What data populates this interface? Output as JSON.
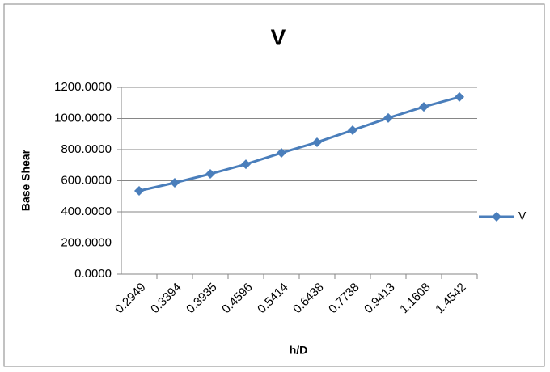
{
  "chart_data": {
    "type": "line",
    "title": "V",
    "ylabel": "Base Shear",
    "xlabel": "h/D",
    "categories": [
      "0.2949",
      "0.3394",
      "0.3935",
      "0.4596",
      "0.5414",
      "0.6438",
      "0.7738",
      "0.9413",
      "1.1608",
      "1.4542"
    ],
    "series": [
      {
        "name": "V",
        "color": "#4a7ebb",
        "values": [
          535,
          587,
          644,
          706,
          779,
          847,
          925,
          1003,
          1075,
          1138
        ]
      }
    ],
    "ylim": [
      0,
      1200
    ],
    "yticks": [
      {
        "value": 0,
        "label": "0.0000"
      },
      {
        "value": 200,
        "label": "200.0000"
      },
      {
        "value": 400,
        "label": "400.0000"
      },
      {
        "value": 600,
        "label": "600.0000"
      },
      {
        "value": 800,
        "label": "800.0000"
      },
      {
        "value": 1000,
        "label": "1000.0000"
      },
      {
        "value": 1200,
        "label": "1200.0000"
      }
    ],
    "grid": true,
    "legend": "right"
  }
}
